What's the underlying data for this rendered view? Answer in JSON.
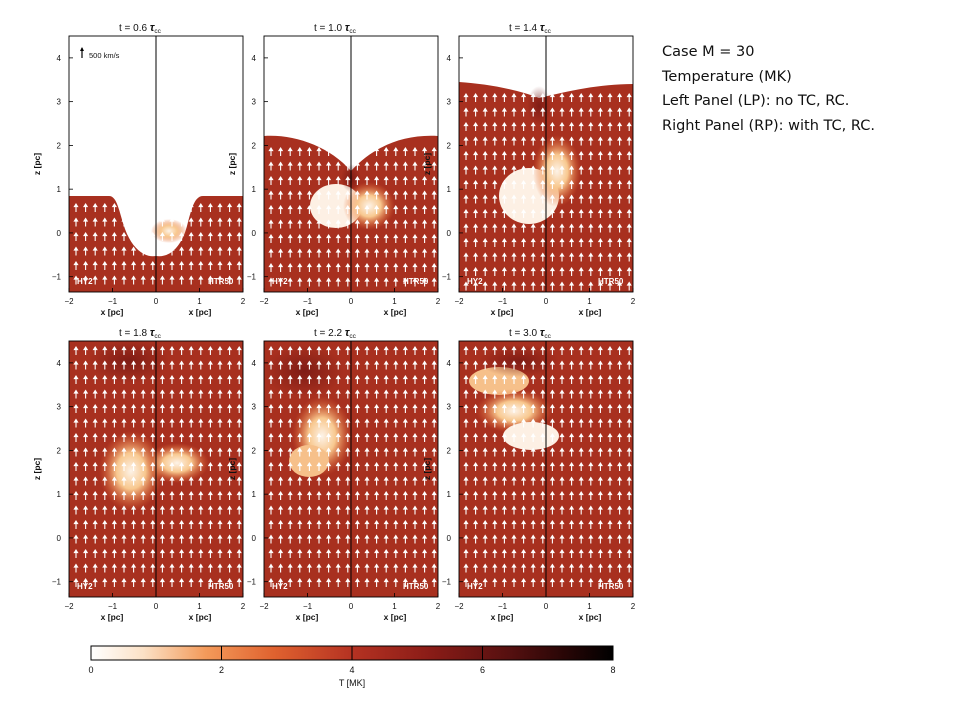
{
  "panels": [
    {
      "time": "t = 0.6",
      "left_label": "HY2",
      "right_label": "HTR50",
      "show_velocity_key": true
    },
    {
      "time": "t = 1.0",
      "left_label": "HY2",
      "right_label": "HTR50",
      "show_velocity_key": false
    },
    {
      "time": "t = 1.4",
      "left_label": "HY2",
      "right_label": "HTR50",
      "show_velocity_key": false
    },
    {
      "time": "t = 1.8",
      "left_label": "HY2",
      "right_label": "HTR50",
      "show_velocity_key": false
    },
    {
      "time": "t = 2.2",
      "left_label": "HY2",
      "right_label": "HTR50",
      "show_velocity_key": false
    },
    {
      "time": "t = 3.0",
      "left_label": "HY2",
      "right_label": "HTR50",
      "show_velocity_key": false
    }
  ],
  "tau_symbol": "τ",
  "tau_subscript": "cc",
  "velocity_key": "500 km/s",
  "ylabel": "z [pc]",
  "xlabel": "x [pc]",
  "z_ticks": [
    "4",
    "3",
    "2",
    "1",
    "0",
    "−1"
  ],
  "x_ticks_left": [
    "−2",
    "−1",
    "0"
  ],
  "x_ticks_right": [
    "0",
    "1",
    "2"
  ],
  "colorbar": {
    "label": "T [MK]",
    "ticks": [
      "0",
      "2",
      "4",
      "6",
      "8"
    ],
    "range": [
      0,
      8
    ]
  },
  "notes": [
    "Case M = 30",
    "Temperature (MK)",
    "Left Panel (LP): no TC, RC.",
    "Right Panel (RP): with TC, RC."
  ],
  "colors": {
    "hot_gas": "#a8301f",
    "cloud": "#fdf0e4",
    "cloud_warm": "#f6c08a",
    "arrow": "#ffffff"
  }
}
